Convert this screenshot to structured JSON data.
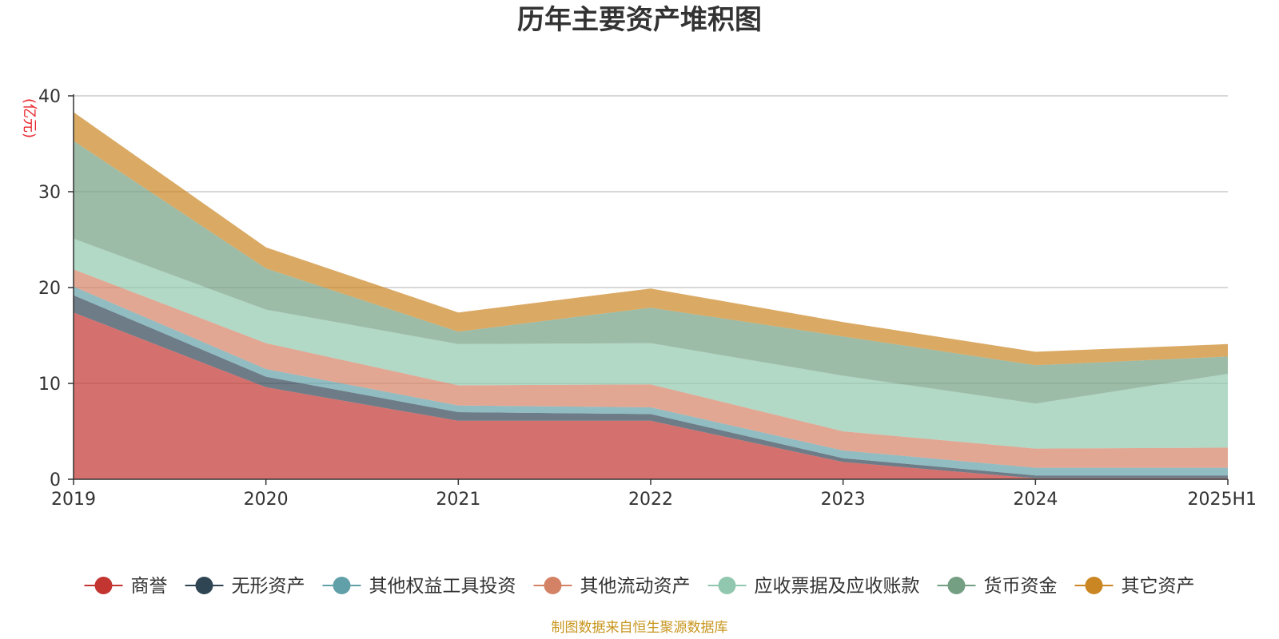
{
  "chart_data": {
    "type": "area",
    "stacked": true,
    "title": "历年主要资产堆积图",
    "unit_label": "(亿元)",
    "x": [
      "2019",
      "2020",
      "2021",
      "2022",
      "2023",
      "2024",
      "2025H1"
    ],
    "ylim": [
      0,
      40
    ],
    "yticks": [
      "0",
      "10",
      "20",
      "30",
      "40"
    ],
    "grid": true,
    "legend_position": "bottom",
    "series": [
      {
        "name": "商誉",
        "color": "#c23531",
        "values": [
          17.4,
          9.6,
          6.1,
          6.1,
          1.8,
          0.1,
          0.1
        ]
      },
      {
        "name": "无形资产",
        "color": "#2f4554",
        "values": [
          1.8,
          1.1,
          0.9,
          0.7,
          0.4,
          0.3,
          0.3
        ]
      },
      {
        "name": "其他权益工具投资",
        "color": "#61a0a8",
        "values": [
          0.9,
          0.8,
          0.7,
          0.7,
          0.8,
          0.8,
          0.8
        ]
      },
      {
        "name": "其他流动资产",
        "color": "#d48265",
        "values": [
          1.8,
          2.7,
          2.1,
          2.4,
          2.0,
          2.0,
          2.1
        ]
      },
      {
        "name": "应收票据及应收账款",
        "color": "#91c7ae",
        "values": [
          3.2,
          3.5,
          4.3,
          4.3,
          5.8,
          4.7,
          7.7
        ]
      },
      {
        "name": "货币资金",
        "color": "#749f83",
        "values": [
          10.2,
          4.3,
          1.3,
          3.7,
          4.1,
          4.0,
          1.8
        ]
      },
      {
        "name": "其它资产",
        "color": "#ca8622",
        "values": [
          3.0,
          2.2,
          2.0,
          2.0,
          1.5,
          1.4,
          1.3
        ]
      }
    ]
  },
  "source_text": "制图数据来自恒生聚源数据库"
}
